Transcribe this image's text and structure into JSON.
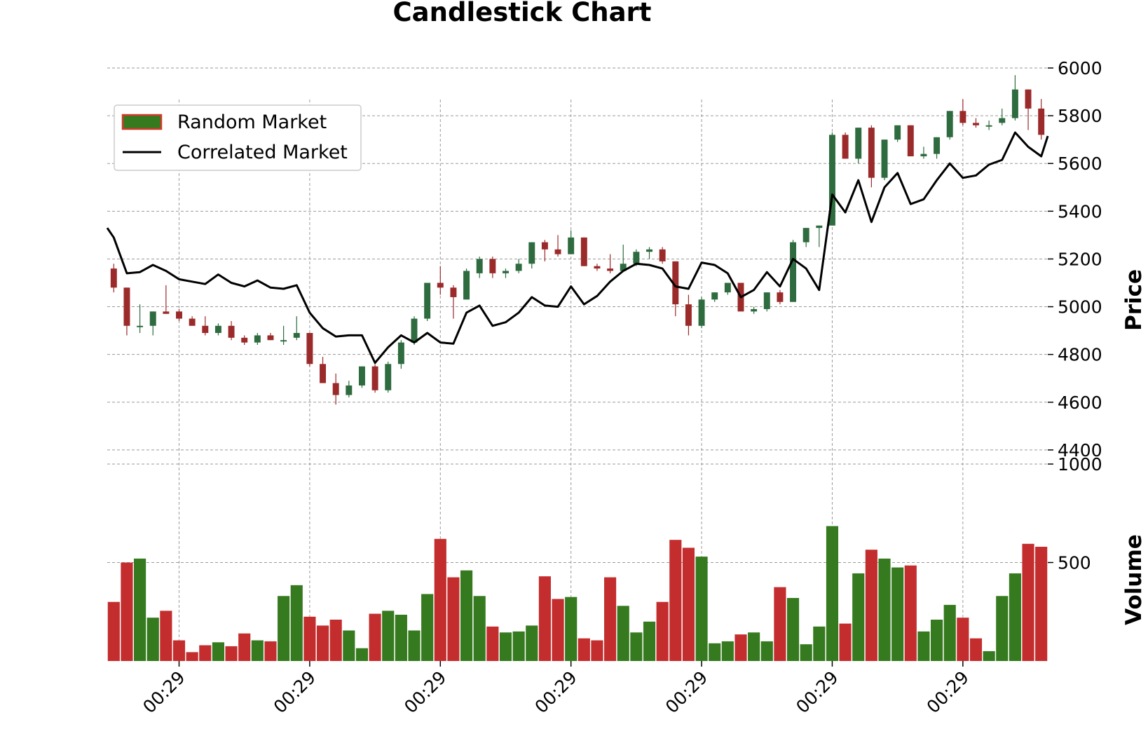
{
  "chart_data": {
    "type": "candlestick",
    "title": "Candlestick Chart",
    "x_tick_labels": [
      "00:29",
      "00:29",
      "00:29",
      "00:29",
      "00:29",
      "00:29",
      "00:29"
    ],
    "x_tick_positions": [
      5,
      15,
      25,
      35,
      45,
      55,
      65
    ],
    "price_axis": {
      "label": "Price",
      "ylim": [
        4200,
        6000
      ],
      "ticks": [
        4400,
        4600,
        4800,
        5000,
        5200,
        5400,
        5600,
        5800,
        6000
      ]
    },
    "volume_axis": {
      "label": "Volume",
      "ylim": [
        0,
        1000
      ],
      "ticks": [
        500,
        1000
      ]
    },
    "grid": true,
    "legend": {
      "position": "top-left",
      "entries": [
        "Random Market",
        "Correlated Market"
      ]
    },
    "colors": {
      "up": "#2e6b3f",
      "down": "#9b2a2a",
      "volume_up": "#367a1f",
      "volume_down": "#c42d2d",
      "line": "#000000",
      "legend_patch_fill": "#367a1f",
      "legend_patch_edge": "#d13a2a"
    },
    "series": [
      {
        "name": "Random Market",
        "kind": "candlestick",
        "ohlc": [
          [
            5160,
            5180,
            5060,
            5080
          ],
          [
            5080,
            5080,
            4880,
            4920
          ],
          [
            4920,
            5010,
            4890,
            4920
          ],
          [
            4920,
            4980,
            4880,
            4980
          ],
          [
            4980,
            5090,
            4970,
            4970
          ],
          [
            4980,
            4990,
            4940,
            4950
          ],
          [
            4950,
            4960,
            4920,
            4920
          ],
          [
            4920,
            4960,
            4880,
            4890
          ],
          [
            4890,
            4930,
            4880,
            4920
          ],
          [
            4920,
            4940,
            4860,
            4870
          ],
          [
            4870,
            4880,
            4840,
            4850
          ],
          [
            4850,
            4890,
            4840,
            4880
          ],
          [
            4880,
            4890,
            4860,
            4860
          ],
          [
            4860,
            4920,
            4840,
            4860
          ],
          [
            4870,
            4960,
            4860,
            4890
          ],
          [
            4890,
            4890,
            4750,
            4760
          ],
          [
            4760,
            4790,
            4680,
            4680
          ],
          [
            4680,
            4720,
            4590,
            4630
          ],
          [
            4630,
            4690,
            4620,
            4670
          ],
          [
            4670,
            4750,
            4660,
            4750
          ],
          [
            4750,
            4760,
            4640,
            4650
          ],
          [
            4650,
            4770,
            4640,
            4760
          ],
          [
            4760,
            4860,
            4740,
            4850
          ],
          [
            4850,
            4960,
            4840,
            4950
          ],
          [
            4950,
            5100,
            4940,
            5100
          ],
          [
            5100,
            5170,
            5050,
            5080
          ],
          [
            5080,
            5090,
            4950,
            5040
          ],
          [
            5030,
            5160,
            5030,
            5150
          ],
          [
            5140,
            5210,
            5120,
            5200
          ],
          [
            5200,
            5210,
            5120,
            5140
          ],
          [
            5140,
            5160,
            5120,
            5150
          ],
          [
            5150,
            5200,
            5140,
            5180
          ],
          [
            5180,
            5270,
            5160,
            5270
          ],
          [
            5270,
            5280,
            5190,
            5240
          ],
          [
            5240,
            5300,
            5210,
            5220
          ],
          [
            5220,
            5320,
            5220,
            5290
          ],
          [
            5290,
            5290,
            5170,
            5170
          ],
          [
            5170,
            5180,
            5150,
            5160
          ],
          [
            5160,
            5220,
            5140,
            5150
          ],
          [
            5150,
            5260,
            5150,
            5180
          ],
          [
            5180,
            5240,
            5170,
            5230
          ],
          [
            5230,
            5250,
            5200,
            5240
          ],
          [
            5240,
            5250,
            5180,
            5190
          ],
          [
            5190,
            5190,
            4960,
            5010
          ],
          [
            5010,
            5050,
            4880,
            4920
          ],
          [
            4920,
            5040,
            4910,
            5030
          ],
          [
            5030,
            5060,
            5020,
            5060
          ],
          [
            5060,
            5100,
            5050,
            5100
          ],
          [
            5100,
            5100,
            4990,
            4980
          ],
          [
            4980,
            5000,
            4970,
            4990
          ],
          [
            4990,
            5060,
            4980,
            5060
          ],
          [
            5060,
            5070,
            5010,
            5020
          ],
          [
            5020,
            5280,
            5020,
            5270
          ],
          [
            5270,
            5330,
            5250,
            5330
          ],
          [
            5330,
            5340,
            5250,
            5340
          ],
          [
            5340,
            5730,
            5340,
            5720
          ],
          [
            5720,
            5730,
            5620,
            5620
          ],
          [
            5620,
            5750,
            5600,
            5750
          ],
          [
            5750,
            5760,
            5500,
            5540
          ],
          [
            5540,
            5700,
            5530,
            5700
          ],
          [
            5700,
            5760,
            5690,
            5760
          ],
          [
            5760,
            5760,
            5630,
            5630
          ],
          [
            5630,
            5670,
            5620,
            5640
          ],
          [
            5640,
            5710,
            5620,
            5710
          ],
          [
            5710,
            5820,
            5700,
            5820
          ],
          [
            5820,
            5870,
            5760,
            5770
          ],
          [
            5770,
            5790,
            5750,
            5760
          ],
          [
            5760,
            5780,
            5740,
            5760
          ],
          [
            5770,
            5830,
            5760,
            5790
          ],
          [
            5790,
            5970,
            5780,
            5910
          ],
          [
            5910,
            5910,
            5740,
            5830
          ],
          [
            5830,
            5870,
            5700,
            5720
          ]
        ]
      },
      {
        "name": "Correlated Market",
        "kind": "line",
        "x": [
          -0.5,
          0,
          1,
          2,
          3,
          4,
          5,
          6,
          7,
          8,
          9,
          10,
          11,
          12,
          13,
          14,
          15,
          16,
          17,
          18,
          19,
          20,
          21,
          22,
          23,
          24,
          25,
          26,
          27,
          28,
          29,
          30,
          31,
          32,
          33,
          34,
          35,
          36,
          37,
          38,
          39,
          40,
          41,
          42,
          43,
          44,
          45,
          46,
          47,
          48,
          49,
          50,
          51,
          52,
          53,
          54,
          55,
          56,
          57,
          58,
          59,
          60,
          61,
          62,
          63,
          64,
          65,
          66,
          67,
          68,
          69,
          70,
          71,
          71.5
        ],
        "y": [
          5330,
          5290,
          5140,
          5145,
          5175,
          5150,
          5115,
          5105,
          5095,
          5135,
          5100,
          5085,
          5110,
          5080,
          5075,
          5090,
          4975,
          4910,
          4875,
          4880,
          4880,
          4765,
          4830,
          4880,
          4850,
          4890,
          4850,
          4845,
          4975,
          5005,
          4920,
          4935,
          4975,
          5040,
          5005,
          5000,
          5085,
          5010,
          5045,
          5105,
          5150,
          5180,
          5175,
          5160,
          5085,
          5075,
          5185,
          5175,
          5140,
          5040,
          5070,
          5145,
          5085,
          5200,
          5160,
          5070,
          5470,
          5395,
          5530,
          5355,
          5500,
          5560,
          5430,
          5450,
          5530,
          5600,
          5540,
          5550,
          5595,
          5615,
          5730,
          5670,
          5630,
          5715
        ]
      },
      {
        "name": "Volume",
        "kind": "bar",
        "values": [
          300,
          500,
          520,
          220,
          255,
          105,
          45,
          80,
          95,
          75,
          140,
          105,
          100,
          330,
          385,
          225,
          180,
          210,
          155,
          65,
          240,
          255,
          235,
          155,
          340,
          620,
          425,
          460,
          330,
          175,
          145,
          150,
          180,
          430,
          315,
          325,
          115,
          105,
          425,
          280,
          145,
          200,
          300,
          615,
          575,
          530,
          90,
          100,
          135,
          145,
          100,
          375,
          320,
          85,
          175,
          685,
          190,
          445,
          565,
          520,
          475,
          485,
          150,
          210,
          285,
          220,
          115,
          50,
          330,
          445,
          595,
          580
        ]
      }
    ]
  }
}
